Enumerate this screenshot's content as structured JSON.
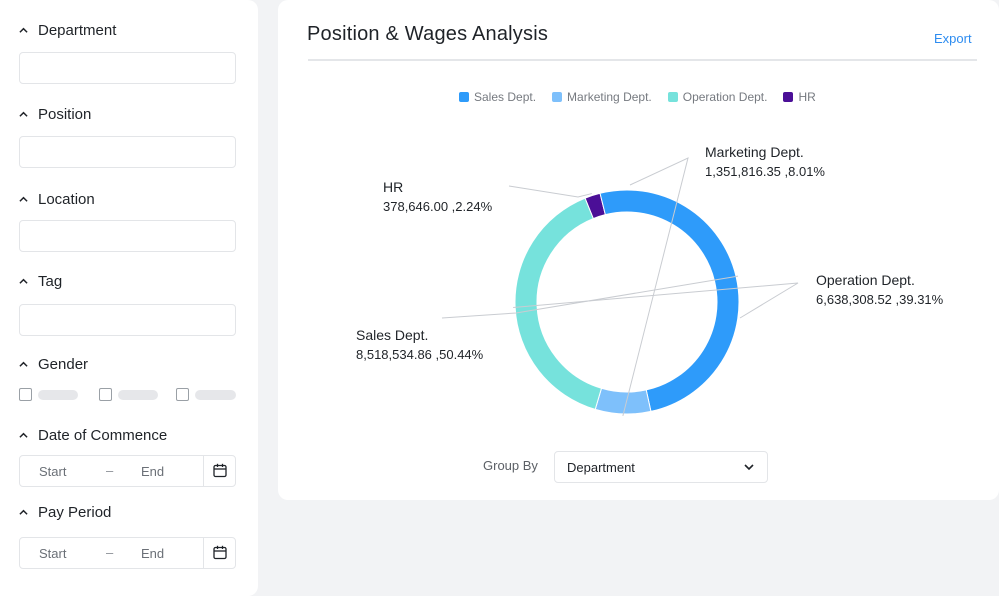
{
  "filters": {
    "department": {
      "label": "Department",
      "value": ""
    },
    "position": {
      "label": "Position",
      "value": ""
    },
    "location": {
      "label": "Location",
      "value": ""
    },
    "tag": {
      "label": "Tag",
      "value": ""
    },
    "gender": {
      "label": "Gender"
    },
    "date_of_commence": {
      "label": "Date of Commence",
      "start_placeholder": "Start",
      "separator": "–",
      "end_placeholder": "End"
    },
    "pay_period": {
      "label": "Pay Period",
      "start_placeholder": "Start",
      "separator": "–",
      "end_placeholder": "End"
    }
  },
  "panel": {
    "title": "Position & Wages Analysis",
    "export_label": "Export",
    "group_by_label": "Group By",
    "group_by_value": "Department"
  },
  "icons": {
    "filter_toggle": "chevron-up-icon",
    "date_picker": "calendar-icon",
    "select_caret": "chevron-down-icon"
  },
  "chart_data": {
    "type": "pie",
    "style": "donut",
    "legend_position": "top",
    "series": [
      {
        "name": "Sales Dept.",
        "value": 8518534.86,
        "value_label": "8,518,534.86",
        "percent": 50.44,
        "percent_label": "50.44%",
        "color": "#2e9bfa"
      },
      {
        "name": "Marketing Dept.",
        "value": 1351816.35,
        "value_label": "1,351,816.35",
        "percent": 8.01,
        "percent_label": "8.01%",
        "color": "#7ec0fb"
      },
      {
        "name": "Operation Dept.",
        "value": 6638308.52,
        "value_label": "6,638,308.52",
        "percent": 39.31,
        "percent_label": "39.31%",
        "color": "#76e2dc"
      },
      {
        "name": "HR",
        "value": 378646.0,
        "value_label": "378,646.00",
        "percent": 2.24,
        "percent_label": "2.24%",
        "color": "#4b0f97"
      }
    ],
    "start_series": "HR",
    "direction": "clockwise"
  }
}
